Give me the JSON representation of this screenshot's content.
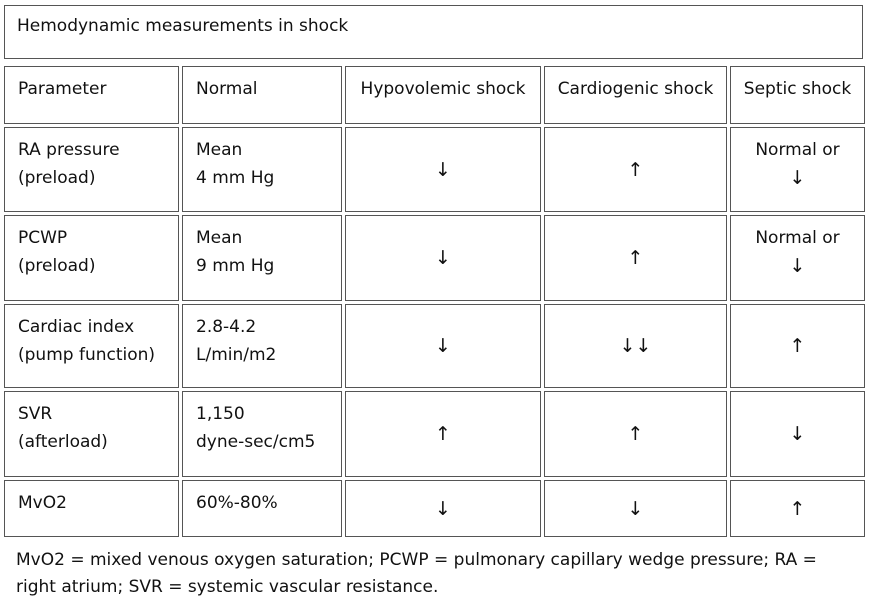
{
  "title": "Hemodynamic measurements in shock",
  "headers": [
    "Parameter",
    "Normal",
    "Hypovolemic shock",
    "Cardiogenic shock",
    "Septic shock"
  ],
  "rows": [
    {
      "parameter_line1": "RA pressure",
      "parameter_line2": "(preload)",
      "normal_line1": "Mean",
      "normal_line2": "4 mm Hg",
      "hypovolemic": "↓",
      "cardiogenic": "↑",
      "septic_line1": "Normal or",
      "septic_line2": "↓"
    },
    {
      "parameter_line1": "PCWP",
      "parameter_line2": "(preload)",
      "normal_line1": "Mean",
      "normal_line2": "9 mm Hg",
      "hypovolemic": "↓",
      "cardiogenic": "↑",
      "septic_line1": "Normal or",
      "septic_line2": "↓"
    },
    {
      "parameter_line1": "Cardiac index",
      "parameter_line2": "(pump function)",
      "normal_line1": "2.8-4.2",
      "normal_line2": "L/min/m2",
      "hypovolemic": "↓",
      "cardiogenic": "↓↓",
      "septic": "↑"
    },
    {
      "parameter_line1": "SVR",
      "parameter_line2": "(afterload)",
      "normal_line1": "1,150",
      "normal_line2": "dyne-sec/cm5",
      "hypovolemic": "↑",
      "cardiogenic": "↑",
      "septic": "↓"
    },
    {
      "parameter_line1": "MvO2",
      "normal_line1": "60%-80%",
      "hypovolemic": "↓",
      "cardiogenic": "↓",
      "septic": "↑"
    }
  ],
  "footnote": "MvO2 = mixed venous oxygen saturation; PCWP = pulmonary capillary wedge pressure; RA = right atrium; SVR = systemic vascular resistance."
}
